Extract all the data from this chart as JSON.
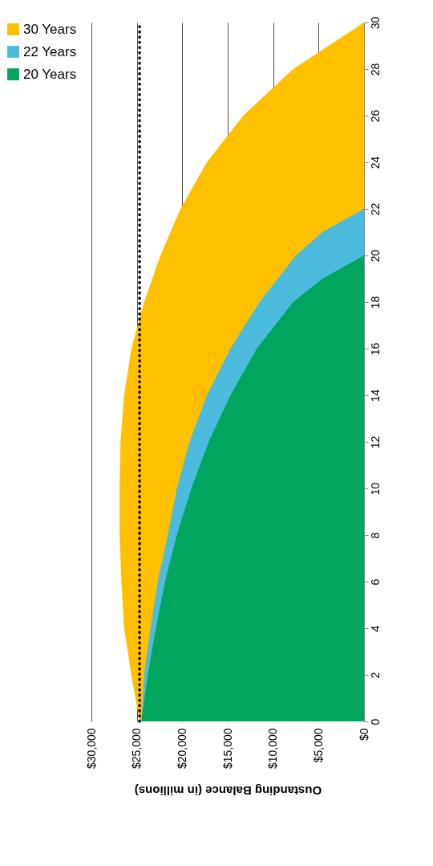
{
  "chart_data": {
    "type": "area",
    "orientation": "horizontal",
    "xlabel": "Oustanding Balance (in millions)",
    "xlim": [
      30000,
      0
    ],
    "xticks": [
      {
        "value": 30000,
        "label": "$30,000"
      },
      {
        "value": 25000,
        "label": "$25,000"
      },
      {
        "value": 20000,
        "label": "$20,000"
      },
      {
        "value": 15000,
        "label": "$15,000"
      },
      {
        "value": 10000,
        "label": "$10,000"
      },
      {
        "value": 5000,
        "label": "$5,000"
      },
      {
        "value": 0,
        "label": "$0"
      }
    ],
    "ylim": [
      0,
      30
    ],
    "yticks": [
      0,
      2,
      4,
      6,
      8,
      10,
      12,
      14,
      16,
      18,
      20,
      22,
      24,
      26,
      28,
      30
    ],
    "grid": "x",
    "legend": "left",
    "series": [
      {
        "name": "30 Years",
        "color": "#ffc000",
        "x": [
          0,
          2,
          4,
          6,
          8,
          10,
          12,
          14,
          16,
          18,
          20,
          22,
          24,
          26,
          28,
          30
        ],
        "values": [
          24700,
          25600,
          26400,
          26700,
          26900,
          26900,
          26800,
          26400,
          25600,
          24200,
          22400,
          20200,
          17300,
          13300,
          7800,
          0
        ]
      },
      {
        "name": "22 Years",
        "color": "#4bbbde",
        "x": [
          0,
          2,
          4,
          6,
          8,
          10,
          12,
          14,
          16,
          18,
          20,
          21,
          22
        ],
        "values": [
          24500,
          24200,
          23500,
          22700,
          21600,
          20600,
          19200,
          17300,
          14700,
          11500,
          7500,
          4600,
          0
        ]
      },
      {
        "name": "20 Years",
        "color": "#00a65d",
        "x": [
          0,
          2,
          4,
          6,
          8,
          10,
          12,
          14,
          16,
          18,
          19,
          20
        ],
        "values": [
          24500,
          23800,
          22900,
          21900,
          20600,
          19000,
          17100,
          14700,
          11800,
          7800,
          4600,
          0
        ]
      }
    ],
    "ref_lines": [
      {
        "axis": "x",
        "value": 24700,
        "color": "#000000",
        "line_style": "dotted"
      }
    ]
  }
}
